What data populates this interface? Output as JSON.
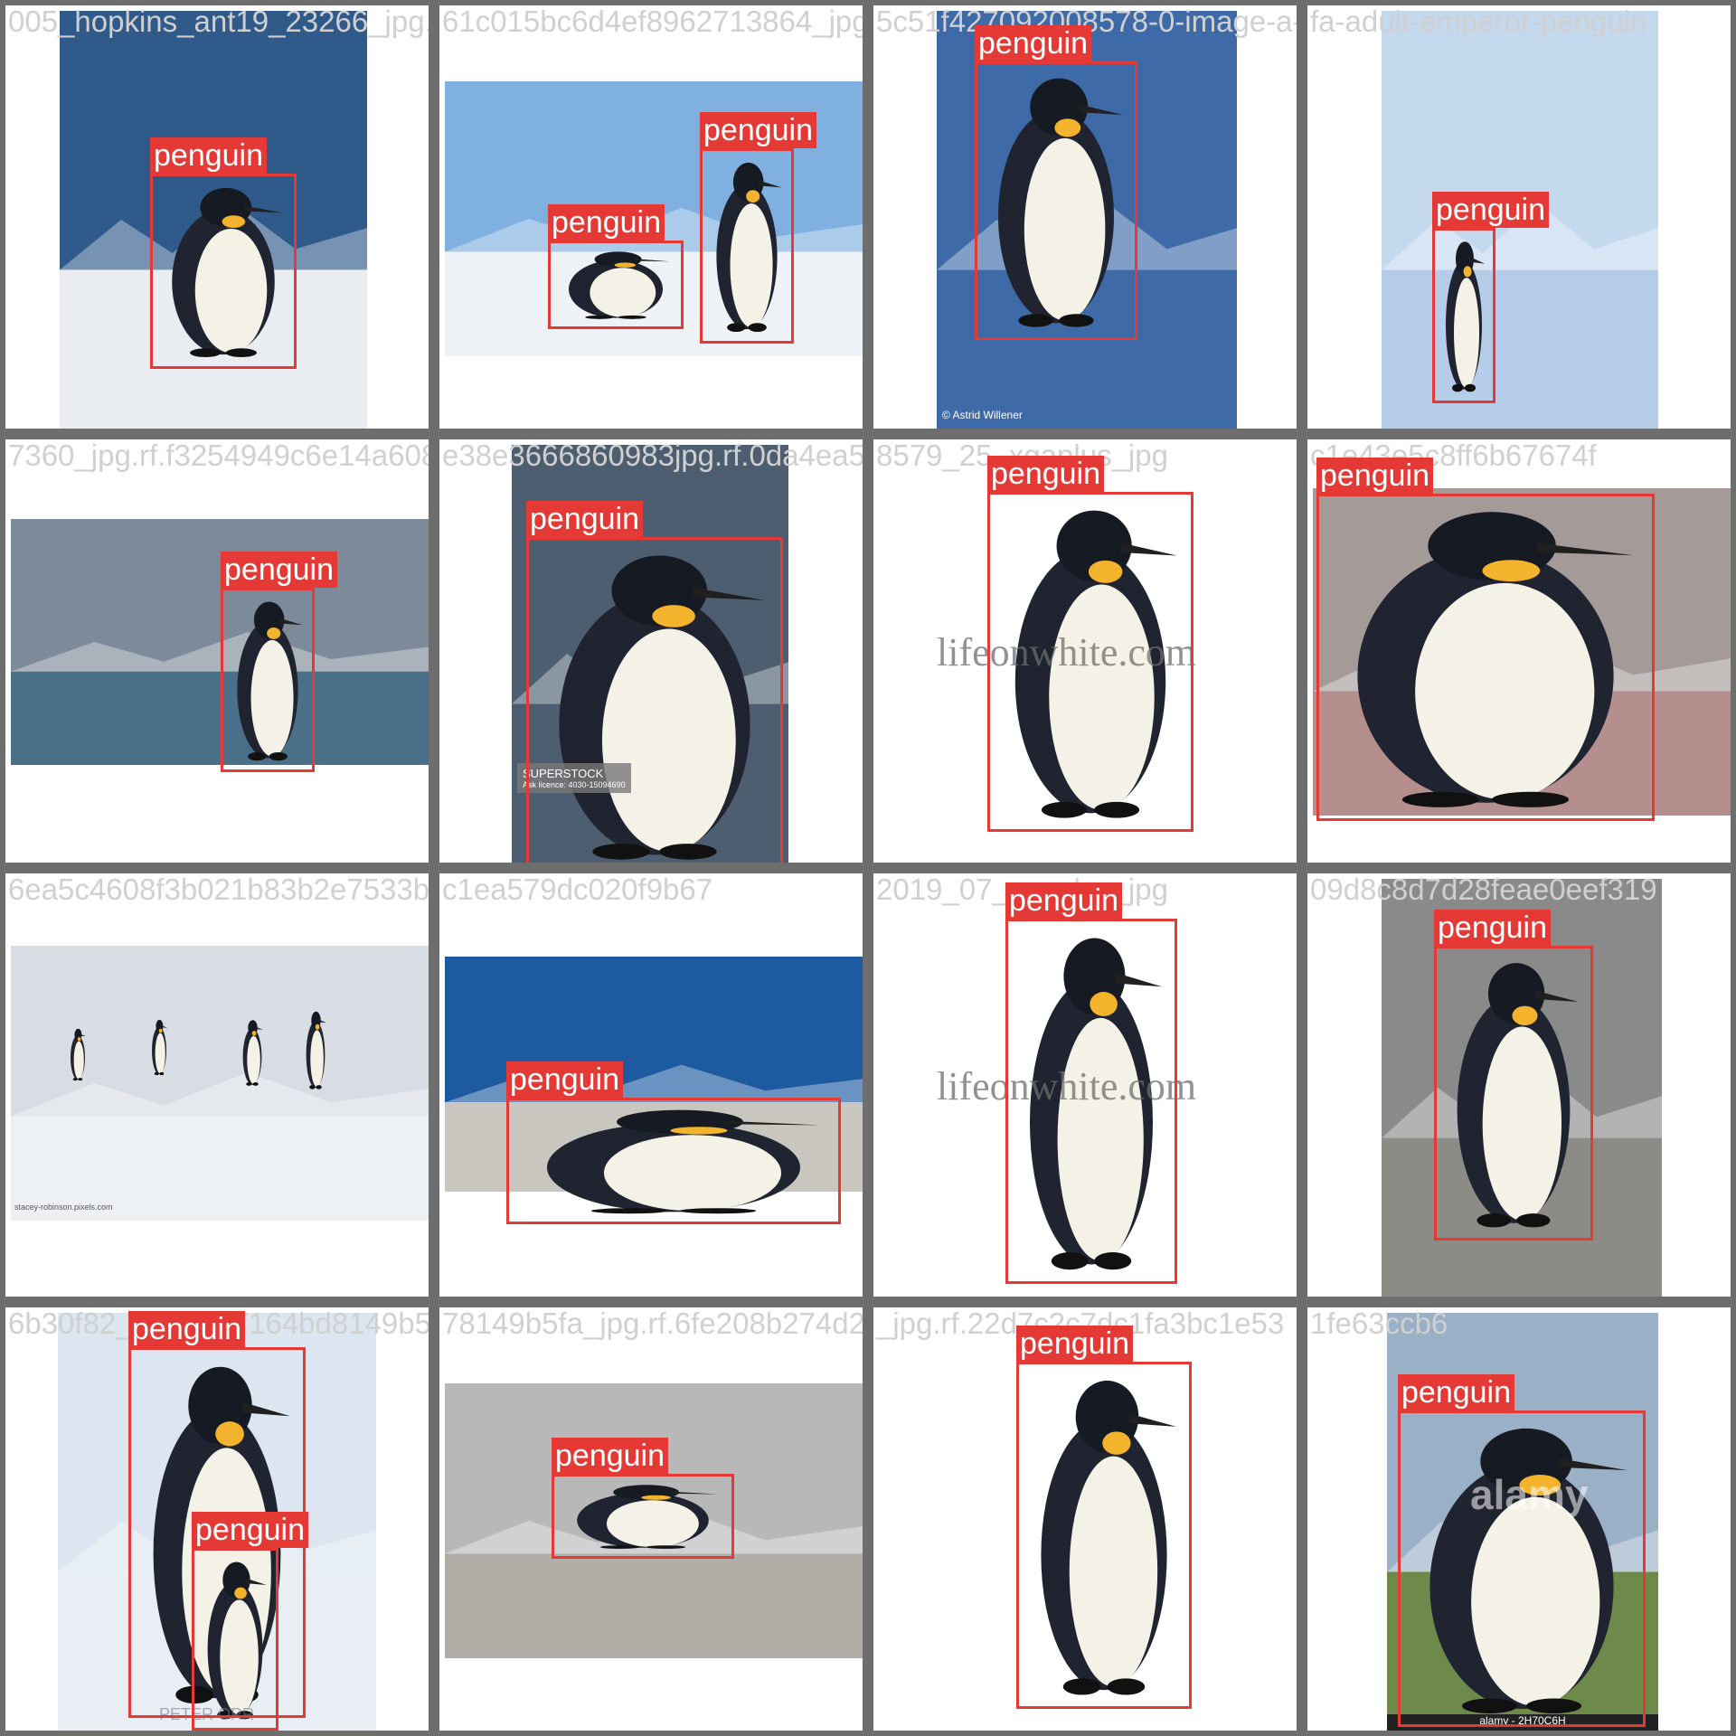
{
  "grid": {
    "rows": 4,
    "cols": 4,
    "tiles": [
      {
        "filename": "005_hopkins_ant19_23266_jpg.rf.61cd5b674ef896271364",
        "detections": [
          {
            "label": "penguin"
          }
        ],
        "scene": "emperor penguin on snow, mountains",
        "colors": {
          "sky": "#2f5a8a",
          "ground": "#e9edf2"
        }
      },
      {
        "filename": "61c015bc6d4ef8962713864_jpg.rf.c615f7a2dd",
        "detections": [
          {
            "label": "penguin"
          },
          {
            "label": "penguin"
          }
        ],
        "scene": "two emperor penguins on ice",
        "colors": {
          "sky": "#7fb0e0",
          "ground": "#eef2f6"
        }
      },
      {
        "filename": "5c51f427092008578-0-image-a-28_1455727272",
        "detections": [
          {
            "label": "penguin"
          }
        ],
        "scene": "king penguin in water",
        "credit": "© Astrid Willener",
        "colors": {
          "sky": "#3e6aa8",
          "ground": "#3e6aa8"
        }
      },
      {
        "filename": "fa-adult-emperor-penguin",
        "detections": [
          {
            "label": "penguin"
          }
        ],
        "scene": "penguin in front of iceberg",
        "colors": {
          "sky": "#c4d8ee",
          "ground": "#b5cde8"
        }
      },
      {
        "filename": "7360_jpg.rf.f3254949c6e14a6088",
        "detections": [
          {
            "label": "penguin"
          }
        ],
        "scene": "king penguin by the sea",
        "colors": {
          "sky": "#7d8a99",
          "ground": "#4a6f88"
        }
      },
      {
        "filename": "e38e3666860983jpg.rf.0da4ea51",
        "detections": [
          {
            "label": "penguin"
          }
        ],
        "scene": "chinstrap penguin portrait",
        "credit": "SUPERSTOCK",
        "credit_sub": "Ask licence: 4030-15094690",
        "colors": {
          "sky": "#4c5e70",
          "ground": "#4c5e70"
        }
      },
      {
        "filename": "8579_25_xgaplus_jpg",
        "detections": [
          {
            "label": "penguin"
          }
        ],
        "scene": "king penguin on white",
        "watermark": "lifeonwhite.com",
        "colors": {
          "sky": "#ffffff",
          "ground": "#ffffff"
        }
      },
      {
        "filename": "c1e43e5c8ff6b67674f",
        "detections": [
          {
            "label": "penguin"
          }
        ],
        "scene": "chinstrap penguin close-up",
        "colors": {
          "sky": "#a49a98",
          "ground": "#b58e8e"
        }
      },
      {
        "filename": "6ea5c4608f3b021b83b2e7533b78e59871d44d6a",
        "detections": [],
        "scene": "emperor penguins with chicks",
        "credit": "stacey-robinson.pixels.com",
        "colors": {
          "sky": "#d8dde4",
          "ground": "#eef1f4"
        }
      },
      {
        "filename": "c1ea579dc020f9b67",
        "detections": [
          {
            "label": "penguin"
          }
        ],
        "scene": "chinstrap penguin lying on sand",
        "colors": {
          "sky": "#1d5aa0",
          "ground": "#c9c6c0"
        }
      },
      {
        "filename": "2019_07_xgaplus_jpg",
        "detections": [
          {
            "label": "penguin"
          }
        ],
        "scene": "king penguin on white",
        "watermark": "lifeonwhite.com",
        "colors": {
          "sky": "#ffffff",
          "ground": "#ffffff"
        }
      },
      {
        "filename": "09d8c8d7d28feae0eef319",
        "detections": [
          {
            "label": "penguin"
          }
        ],
        "scene": "king penguin on stony shore",
        "colors": {
          "sky": "#8b8a8a",
          "ground": "#8c8b86"
        }
      },
      {
        "filename": "6b30f82_9418e27164bd8149b5fajpg",
        "detections": [
          {
            "label": "penguin"
          },
          {
            "label": "penguin"
          }
        ],
        "scene": "emperor penguin with chick",
        "credit": "PETER ORR",
        "colors": {
          "sky": "#dbe6f0",
          "ground": "#e8eef4"
        }
      },
      {
        "filename": "78149b5fa_jpg.rf.6fe208b274d22609_6027",
        "detections": [
          {
            "label": "penguin"
          }
        ],
        "scene": "penguin lying on sand",
        "colors": {
          "sky": "#b8b8b8",
          "ground": "#b0aca6"
        }
      },
      {
        "filename": "_jpg.rf.22d7c2c7dc1fa3bc1e53",
        "detections": [
          {
            "label": "penguin"
          }
        ],
        "scene": "king penguin on white",
        "colors": {
          "sky": "#ffffff",
          "ground": "#ffffff"
        }
      },
      {
        "filename": "1fe63ccb6",
        "detections": [
          {
            "label": "penguin"
          }
        ],
        "scene": "king penguin in grass",
        "watermark": "alamy",
        "credit": "alamy - 2H70C6H",
        "colors": {
          "sky": "#9ab0c6",
          "ground": "#6e8a4a"
        }
      }
    ]
  }
}
